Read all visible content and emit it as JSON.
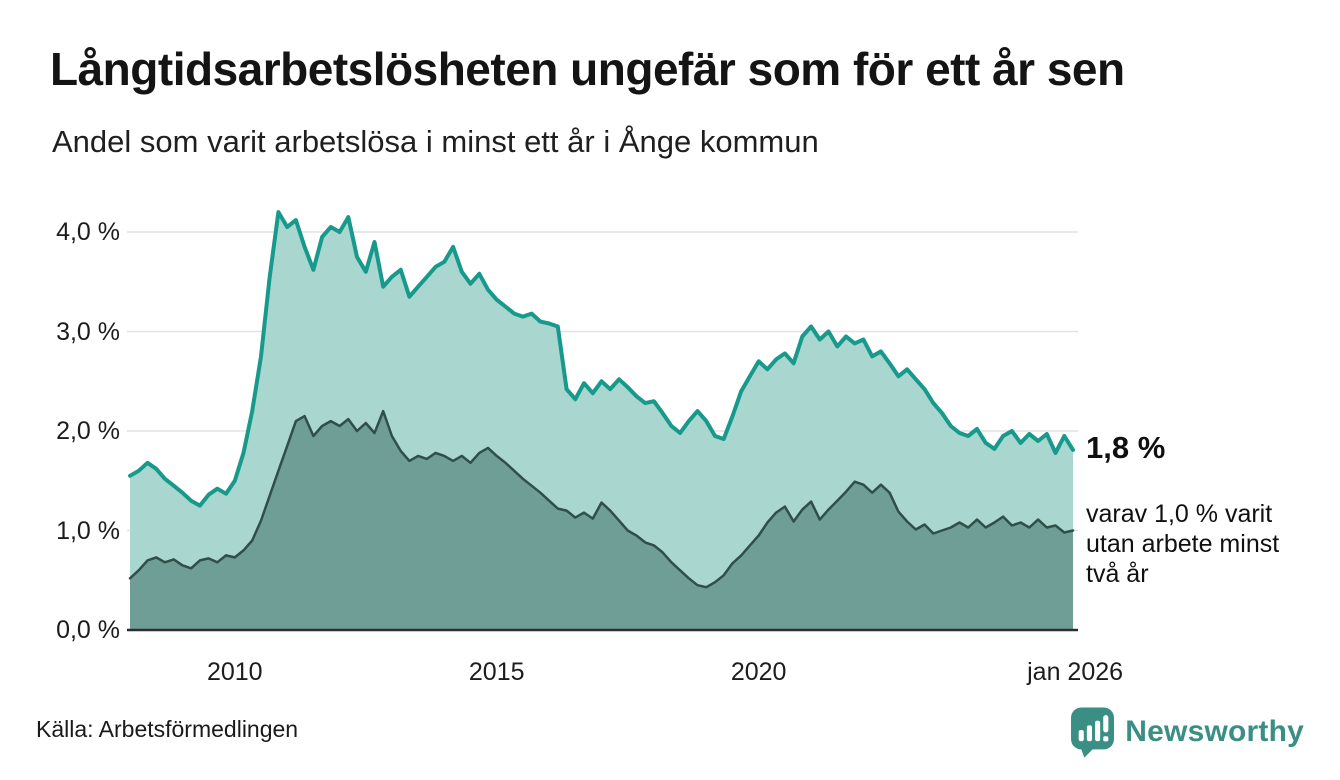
{
  "header": {
    "title": "Långtidsarbetslösheten ungefär som för ett år sen",
    "subtitle": "Andel som varit arbetslösa i minst ett år i Ånge kommun"
  },
  "chart_data": {
    "type": "area",
    "title": "Långtidsarbetslösheten ungefär som för ett år sen",
    "subtitle": "Andel som varit arbetslösa i minst ett år i Ånge kommun",
    "xlabel": "",
    "ylabel": "",
    "xlim": [
      2008.0,
      2026.0
    ],
    "ylim": [
      0,
      4.3
    ],
    "grid": true,
    "legend": "none",
    "x_start": 2008.0,
    "x_step_years": 0.1666667,
    "x_ticks": [
      {
        "label": "2010",
        "year": 2010
      },
      {
        "label": "2015",
        "year": 2015
      },
      {
        "label": "2020",
        "year": 2020
      },
      {
        "label": "jan 2026",
        "year": 2026.04
      }
    ],
    "y_ticks": [
      {
        "label": "0,0 %",
        "value": 0
      },
      {
        "label": "1,0 %",
        "value": 1
      },
      {
        "label": "2,0 %",
        "value": 2
      },
      {
        "label": "3,0 %",
        "value": 3
      },
      {
        "label": "4,0 %",
        "value": 4
      }
    ],
    "series": [
      {
        "name": "Andel arbetslösa minst ett år",
        "color": "#17998c",
        "fill": "#a9d6cf",
        "end_label": "1,8 %",
        "values": [
          1.55,
          1.6,
          1.68,
          1.62,
          1.52,
          1.45,
          1.38,
          1.3,
          1.25,
          1.36,
          1.42,
          1.37,
          1.5,
          1.78,
          2.2,
          2.75,
          3.55,
          4.2,
          4.05,
          4.12,
          3.85,
          3.62,
          3.95,
          4.05,
          4.0,
          4.15,
          3.75,
          3.6,
          3.9,
          3.45,
          3.55,
          3.62,
          3.35,
          3.45,
          3.55,
          3.65,
          3.7,
          3.85,
          3.6,
          3.48,
          3.58,
          3.42,
          3.32,
          3.25,
          3.18,
          3.15,
          3.18,
          3.1,
          3.08,
          3.05,
          2.42,
          2.32,
          2.48,
          2.38,
          2.5,
          2.42,
          2.52,
          2.44,
          2.35,
          2.28,
          2.3,
          2.18,
          2.05,
          1.98,
          2.1,
          2.2,
          2.1,
          1.95,
          1.92,
          2.15,
          2.4,
          2.55,
          2.7,
          2.62,
          2.72,
          2.78,
          2.68,
          2.95,
          3.05,
          2.92,
          3.0,
          2.85,
          2.95,
          2.88,
          2.92,
          2.75,
          2.8,
          2.68,
          2.55,
          2.62,
          2.52,
          2.42,
          2.28,
          2.18,
          2.05,
          1.98,
          1.95,
          2.02,
          1.88,
          1.82,
          1.95,
          2.0,
          1.88,
          1.97,
          1.9,
          1.97,
          1.78,
          1.95,
          1.81
        ]
      },
      {
        "name": "Andel arbetslösa minst två år",
        "color": "#304f49",
        "fill": "#6f9e97",
        "end_label": "varav 1,0 % varit utan arbete minst två år",
        "values": [
          0.52,
          0.6,
          0.7,
          0.73,
          0.68,
          0.71,
          0.65,
          0.62,
          0.7,
          0.72,
          0.68,
          0.75,
          0.73,
          0.8,
          0.9,
          1.1,
          1.35,
          1.6,
          1.85,
          2.1,
          2.15,
          1.95,
          2.05,
          2.1,
          2.05,
          2.12,
          2.0,
          2.08,
          1.98,
          2.2,
          1.95,
          1.8,
          1.7,
          1.75,
          1.72,
          1.78,
          1.75,
          1.7,
          1.75,
          1.68,
          1.78,
          1.83,
          1.75,
          1.68,
          1.6,
          1.52,
          1.45,
          1.38,
          1.3,
          1.22,
          1.2,
          1.13,
          1.18,
          1.12,
          1.28,
          1.2,
          1.1,
          1.0,
          0.95,
          0.88,
          0.85,
          0.78,
          0.68,
          0.6,
          0.52,
          0.45,
          0.43,
          0.48,
          0.55,
          0.67,
          0.75,
          0.85,
          0.95,
          1.08,
          1.18,
          1.24,
          1.09,
          1.21,
          1.29,
          1.11,
          1.21,
          1.3,
          1.39,
          1.49,
          1.46,
          1.38,
          1.46,
          1.38,
          1.19,
          1.09,
          1.01,
          1.06,
          0.97,
          1.0,
          1.03,
          1.08,
          1.03,
          1.11,
          1.03,
          1.08,
          1.14,
          1.05,
          1.08,
          1.03,
          1.11,
          1.03,
          1.05,
          0.98,
          1.0
        ]
      }
    ]
  },
  "annotations": {
    "current_value": "1,8 %",
    "secondary": "varav 1,0 % varit utan arbete minst två år"
  },
  "footer": {
    "source": "Källa: Arbetsförmedlingen",
    "brand": "Newsworthy"
  },
  "colors": {
    "series1_line": "#17998c",
    "series1_fill": "#a9d6cf",
    "series2_line": "#304f49",
    "series2_fill": "#6f9e97",
    "gridline": "#e2e2e2",
    "axis_line": "#2d2d2d",
    "brand_teal": "#3a8e84",
    "text": "#1a1a1a"
  }
}
